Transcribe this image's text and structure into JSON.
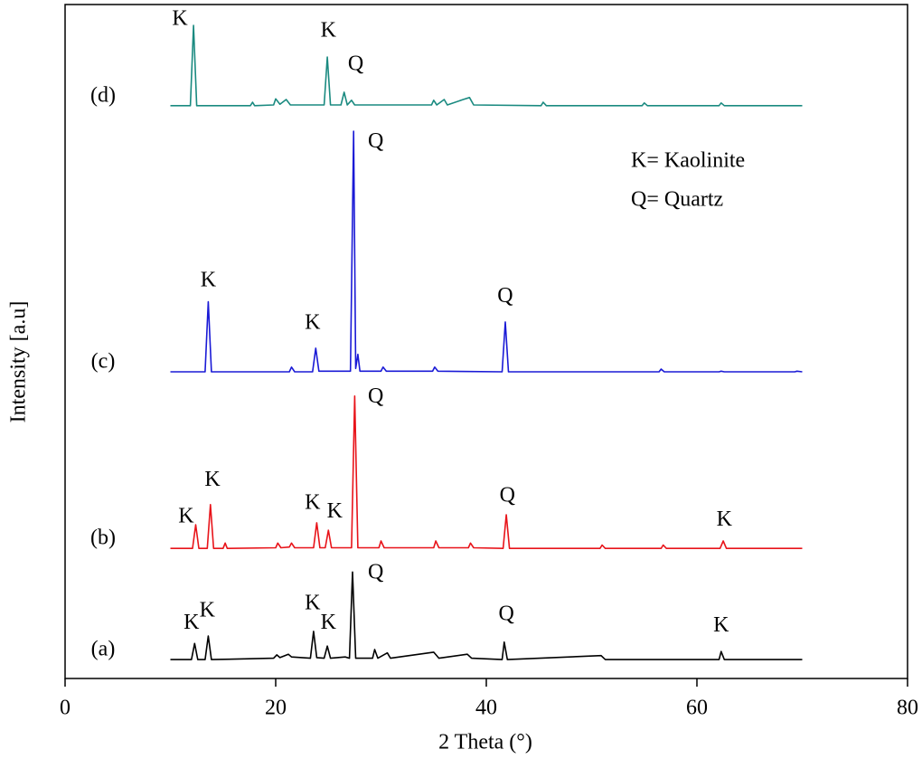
{
  "chart_data": {
    "type": "line",
    "x_label": "2 Theta (°)",
    "y_label": "Intensity [a.u]",
    "xlim": [
      0,
      80
    ],
    "xticks": [
      0,
      20,
      40,
      60,
      80
    ],
    "ylim": [
      0,
      100
    ],
    "notes": [
      "K= Kaolinite",
      "Q= Quartz"
    ],
    "series": [
      {
        "name": "(a)",
        "color": "#000000",
        "x": [
          10,
          12.0,
          12.3,
          12.6,
          13.3,
          13.6,
          13.9,
          19.8,
          20.1,
          20.4,
          21.2,
          21.5,
          23.3,
          23.6,
          23.9,
          24.6,
          24.9,
          25.2,
          26.6,
          27.0,
          27.3,
          27.6,
          29.2,
          29.4,
          29.7,
          30.6,
          30.9,
          35.0,
          35.5,
          38.2,
          38.6,
          41.5,
          41.7,
          42.0,
          50.9,
          51.3,
          62.1,
          62.3,
          62.6,
          70
        ],
        "values": [
          2.8,
          2.8,
          5.2,
          2.8,
          2.8,
          6.3,
          2.8,
          3.0,
          3.5,
          3.1,
          3.6,
          3.2,
          3.0,
          7.0,
          3.1,
          3.0,
          4.8,
          3.0,
          3.2,
          3.0,
          15.8,
          3.0,
          3.0,
          4.3,
          3.0,
          3.8,
          3.0,
          3.9,
          3.0,
          3.6,
          3.0,
          2.8,
          5.4,
          2.8,
          3.4,
          2.8,
          2.8,
          4.0,
          2.8,
          2.8
        ]
      },
      {
        "name": "(b)",
        "color": "#e8141a",
        "x": [
          10,
          12.1,
          12.4,
          12.7,
          13.5,
          13.8,
          14.1,
          15.0,
          15.2,
          15.4,
          20.0,
          20.2,
          20.5,
          21.3,
          21.5,
          21.8,
          23.6,
          23.9,
          24.2,
          24.7,
          25.0,
          25.3,
          27.2,
          27.5,
          27.8,
          29.8,
          30.0,
          30.3,
          35.0,
          35.2,
          35.5,
          38.3,
          38.5,
          38.8,
          41.6,
          41.9,
          42.2,
          50.8,
          51.0,
          51.3,
          56.6,
          56.8,
          57.1,
          62.2,
          62.5,
          62.8,
          70
        ],
        "values": [
          19.3,
          19.3,
          22.8,
          19.3,
          19.3,
          25.8,
          19.3,
          19.3,
          20.1,
          19.3,
          19.4,
          20.1,
          19.4,
          19.5,
          20.1,
          19.4,
          19.4,
          23.1,
          19.4,
          19.4,
          22.0,
          19.4,
          19.4,
          41.9,
          19.4,
          19.4,
          20.4,
          19.4,
          19.4,
          20.4,
          19.4,
          19.4,
          20.1,
          19.4,
          19.3,
          24.3,
          19.3,
          19.3,
          19.8,
          19.3,
          19.3,
          19.8,
          19.3,
          19.3,
          20.4,
          19.3,
          19.3
        ]
      },
      {
        "name": "(c)",
        "color": "#1a1ad6",
        "x": [
          10,
          13.3,
          13.6,
          13.9,
          21.3,
          21.5,
          21.8,
          23.5,
          23.8,
          24.1,
          27.1,
          27.4,
          27.6,
          27.8,
          28.0,
          30.0,
          30.2,
          30.5,
          34.9,
          35.1,
          35.4,
          41.5,
          41.8,
          42.1,
          56.4,
          56.6,
          56.9,
          62.1,
          62.3,
          62.6,
          69.3,
          69.5,
          70
        ],
        "values": [
          45.5,
          45.5,
          55.9,
          45.5,
          45.5,
          46.2,
          45.5,
          45.5,
          49.0,
          45.6,
          45.6,
          81.2,
          46.0,
          48.1,
          45.6,
          45.6,
          46.2,
          45.6,
          45.6,
          46.2,
          45.6,
          45.5,
          52.9,
          45.5,
          45.5,
          45.9,
          45.5,
          45.5,
          45.6,
          45.5,
          45.5,
          45.6,
          45.5
        ]
      },
      {
        "name": "(d)",
        "color": "#1a8a80",
        "x": [
          10,
          11.9,
          12.2,
          12.5,
          17.6,
          17.8,
          18.0,
          19.8,
          20.0,
          20.4,
          21.0,
          21.4,
          24.6,
          24.9,
          25.2,
          26.2,
          26.5,
          26.8,
          27.2,
          27.5,
          34.8,
          35.0,
          35.3,
          36.0,
          36.3,
          37.8,
          38.4,
          38.8,
          45.2,
          45.4,
          45.7,
          54.8,
          55.0,
          55.3,
          62.1,
          62.3,
          62.6,
          70
        ],
        "values": [
          85.0,
          85.0,
          96.9,
          85.0,
          85.0,
          85.5,
          85.0,
          85.1,
          86.0,
          85.2,
          85.9,
          85.1,
          85.1,
          92.2,
          85.1,
          85.1,
          87.0,
          85.1,
          85.8,
          85.1,
          85.1,
          85.8,
          85.1,
          85.9,
          85.1,
          85.9,
          86.2,
          85.1,
          85.0,
          85.5,
          85.0,
          85.0,
          85.4,
          85.0,
          85.0,
          85.4,
          85.0,
          85.0
        ]
      }
    ],
    "annotations": [
      {
        "text": "K",
        "x": 12.0,
        "y": 8.1
      },
      {
        "text": "K",
        "x": 13.5,
        "y": 9.9
      },
      {
        "text": "K",
        "x": 23.5,
        "y": 11.0
      },
      {
        "text": "K",
        "x": 25.0,
        "y": 8.1
      },
      {
        "text": "Q",
        "x": 29.5,
        "y": 15.6
      },
      {
        "text": "Q",
        "x": 41.9,
        "y": 9.4
      },
      {
        "text": "K",
        "x": 62.3,
        "y": 7.7
      },
      {
        "text": "K",
        "x": 11.5,
        "y": 23.9
      },
      {
        "text": "K",
        "x": 14.0,
        "y": 29.3
      },
      {
        "text": "K",
        "x": 23.5,
        "y": 25.9
      },
      {
        "text": "K",
        "x": 25.6,
        "y": 24.6
      },
      {
        "text": "Q",
        "x": 29.5,
        "y": 41.7
      },
      {
        "text": "Q",
        "x": 42.0,
        "y": 27.0
      },
      {
        "text": "K",
        "x": 62.6,
        "y": 23.4
      },
      {
        "text": "K",
        "x": 13.6,
        "y": 58.9
      },
      {
        "text": "K",
        "x": 23.5,
        "y": 52.6
      },
      {
        "text": "Q",
        "x": 29.5,
        "y": 79.5
      },
      {
        "text": "Q",
        "x": 41.8,
        "y": 56.6
      },
      {
        "text": "K",
        "x": 10.9,
        "y": 97.7
      },
      {
        "text": "K",
        "x": 25.0,
        "y": 96.0
      },
      {
        "text": "Q",
        "x": 27.6,
        "y": 91.0
      }
    ]
  }
}
